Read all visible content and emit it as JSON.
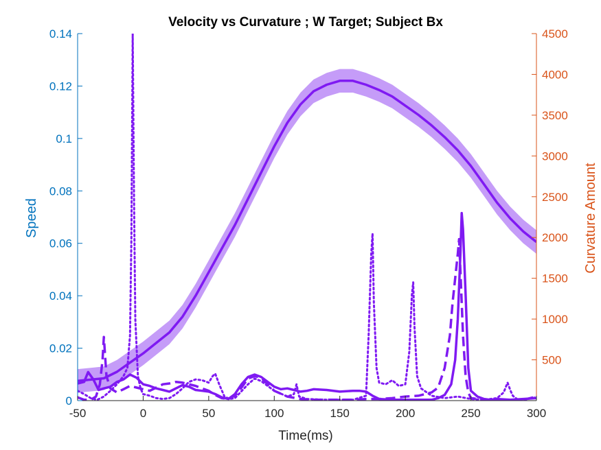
{
  "chart_data": {
    "type": "line",
    "title": "Velocity vs Curvature ; W Target; Subject Bx",
    "xlabel": "Time(ms)",
    "ylabel_left": "Speed",
    "ylabel_right": "Curvature Amount",
    "xlim": [
      -50,
      300
    ],
    "ylim_left": [
      0,
      0.14
    ],
    "ylim_right": [
      0,
      4500
    ],
    "xticks": [
      "-50",
      "0",
      "50",
      "100",
      "150",
      "200",
      "250",
      "300"
    ],
    "yticks_left": [
      "0",
      "0.02",
      "0.04",
      "0.06",
      "0.08",
      "0.1",
      "0.12",
      "0.14"
    ],
    "yticks_right": [
      "500",
      "1000",
      "1500",
      "2000",
      "2500",
      "3000",
      "3500",
      "4000",
      "4500"
    ],
    "grid": false,
    "colors": {
      "series": "#7F1AF2",
      "band": "#C59CF8",
      "left_axis": "#0072BD",
      "right_axis": "#D95319",
      "text": "#262626"
    },
    "speed_series": {
      "axis": "left",
      "style": "solid",
      "band_halfwidth": 0.0045,
      "x": [
        -50,
        -30,
        -20,
        -10,
        0,
        10,
        20,
        30,
        40,
        50,
        60,
        70,
        80,
        90,
        100,
        110,
        120,
        130,
        140,
        150,
        160,
        170,
        180,
        190,
        200,
        210,
        220,
        230,
        240,
        250,
        260,
        270,
        280,
        290,
        300
      ],
      "y": [
        0.0075,
        0.0085,
        0.011,
        0.0145,
        0.018,
        0.022,
        0.026,
        0.032,
        0.04,
        0.049,
        0.058,
        0.067,
        0.077,
        0.087,
        0.097,
        0.106,
        0.113,
        0.118,
        0.1205,
        0.122,
        0.122,
        0.1205,
        0.1185,
        0.116,
        0.1125,
        0.109,
        0.105,
        0.1005,
        0.0955,
        0.0895,
        0.0825,
        0.0755,
        0.0695,
        0.0645,
        0.0605
      ]
    },
    "curvature_series": [
      {
        "axis": "right",
        "style": "solid",
        "x": [
          -50,
          -45,
          -42,
          -38,
          -34,
          -30,
          -25,
          -20,
          -15,
          -10,
          -5,
          0,
          5,
          10,
          15,
          20,
          25,
          30,
          35,
          40,
          45,
          50,
          55,
          60,
          65,
          70,
          75,
          80,
          85,
          90,
          95,
          100,
          105,
          110,
          115,
          120,
          125,
          130,
          140,
          150,
          160,
          165,
          170,
          175,
          180,
          190,
          200,
          210,
          220,
          225,
          230,
          235,
          238,
          240,
          242,
          243,
          244,
          246,
          248,
          250,
          255,
          260,
          265,
          270,
          280,
          290,
          300
        ],
        "y": [
          210,
          230,
          350,
          260,
          130,
          150,
          170,
          230,
          260,
          320,
          280,
          200,
          180,
          150,
          130,
          110,
          150,
          190,
          170,
          130,
          120,
          110,
          80,
          40,
          20,
          80,
          200,
          290,
          320,
          290,
          230,
          170,
          140,
          150,
          130,
          110,
          120,
          140,
          130,
          110,
          120,
          120,
          110,
          60,
          20,
          10,
          10,
          10,
          10,
          30,
          70,
          200,
          500,
          1000,
          1800,
          2300,
          2100,
          1300,
          400,
          120,
          50,
          20,
          10,
          20,
          10,
          20,
          30
        ]
      },
      {
        "axis": "right",
        "style": "dashed",
        "x": [
          -50,
          -45,
          -40,
          -36,
          -33,
          -31,
          -30,
          -28,
          -25,
          -20,
          -15,
          -10,
          -5,
          0,
          5,
          10,
          15,
          20,
          25,
          30,
          35,
          40,
          45,
          50,
          55,
          60,
          65,
          70,
          75,
          80,
          85,
          90,
          95,
          100,
          110,
          120,
          130,
          140,
          150,
          160,
          170,
          180,
          190,
          200,
          210,
          220,
          225,
          230,
          234,
          236,
          238,
          240,
          241,
          242,
          244,
          246,
          248,
          250,
          260,
          270,
          280,
          290,
          300
        ],
        "y": [
          40,
          10,
          10,
          50,
          200,
          500,
          780,
          300,
          150,
          100,
          140,
          180,
          160,
          140,
          120,
          160,
          200,
          210,
          230,
          220,
          200,
          180,
          150,
          120,
          70,
          30,
          20,
          60,
          160,
          270,
          300,
          280,
          200,
          120,
          50,
          20,
          10,
          10,
          10,
          10,
          20,
          20,
          30,
          50,
          60,
          100,
          160,
          400,
          800,
          1200,
          1500,
          1800,
          1980,
          1600,
          800,
          300,
          100,
          30,
          10,
          10,
          10,
          10,
          50
        ]
      },
      {
        "axis": "right",
        "style": "dotted",
        "x": [
          -50,
          -45,
          -40,
          -35,
          -30,
          -25,
          -20,
          -15,
          -12,
          -10,
          -9,
          -8,
          -7,
          -6,
          -4,
          -2,
          0,
          5,
          10,
          15,
          20,
          25,
          30,
          35,
          40,
          45,
          50,
          53,
          55,
          58,
          62,
          66,
          70,
          80,
          85,
          90,
          100,
          110,
          115,
          117,
          119,
          125,
          140,
          160,
          170,
          172,
          174,
          175,
          176,
          178,
          180,
          185,
          190,
          195,
          200,
          203,
          205,
          206,
          207,
          209,
          212,
          220,
          230,
          240,
          250,
          260,
          270,
          275,
          278,
          280,
          282,
          285,
          290,
          300
        ],
        "y": [
          120,
          80,
          30,
          10,
          50,
          120,
          200,
          300,
          400,
          800,
          2000,
          4500,
          2500,
          1000,
          300,
          150,
          80,
          60,
          30,
          20,
          30,
          80,
          150,
          230,
          260,
          250,
          220,
          300,
          330,
          200,
          50,
          20,
          30,
          200,
          270,
          240,
          120,
          50,
          80,
          200,
          50,
          20,
          10,
          10,
          60,
          800,
          1800,
          2050,
          1200,
          400,
          220,
          200,
          250,
          180,
          200,
          600,
          1300,
          1450,
          900,
          300,
          150,
          60,
          30,
          50,
          20,
          10,
          30,
          100,
          220,
          130,
          60,
          20,
          10,
          40
        ]
      }
    ]
  }
}
